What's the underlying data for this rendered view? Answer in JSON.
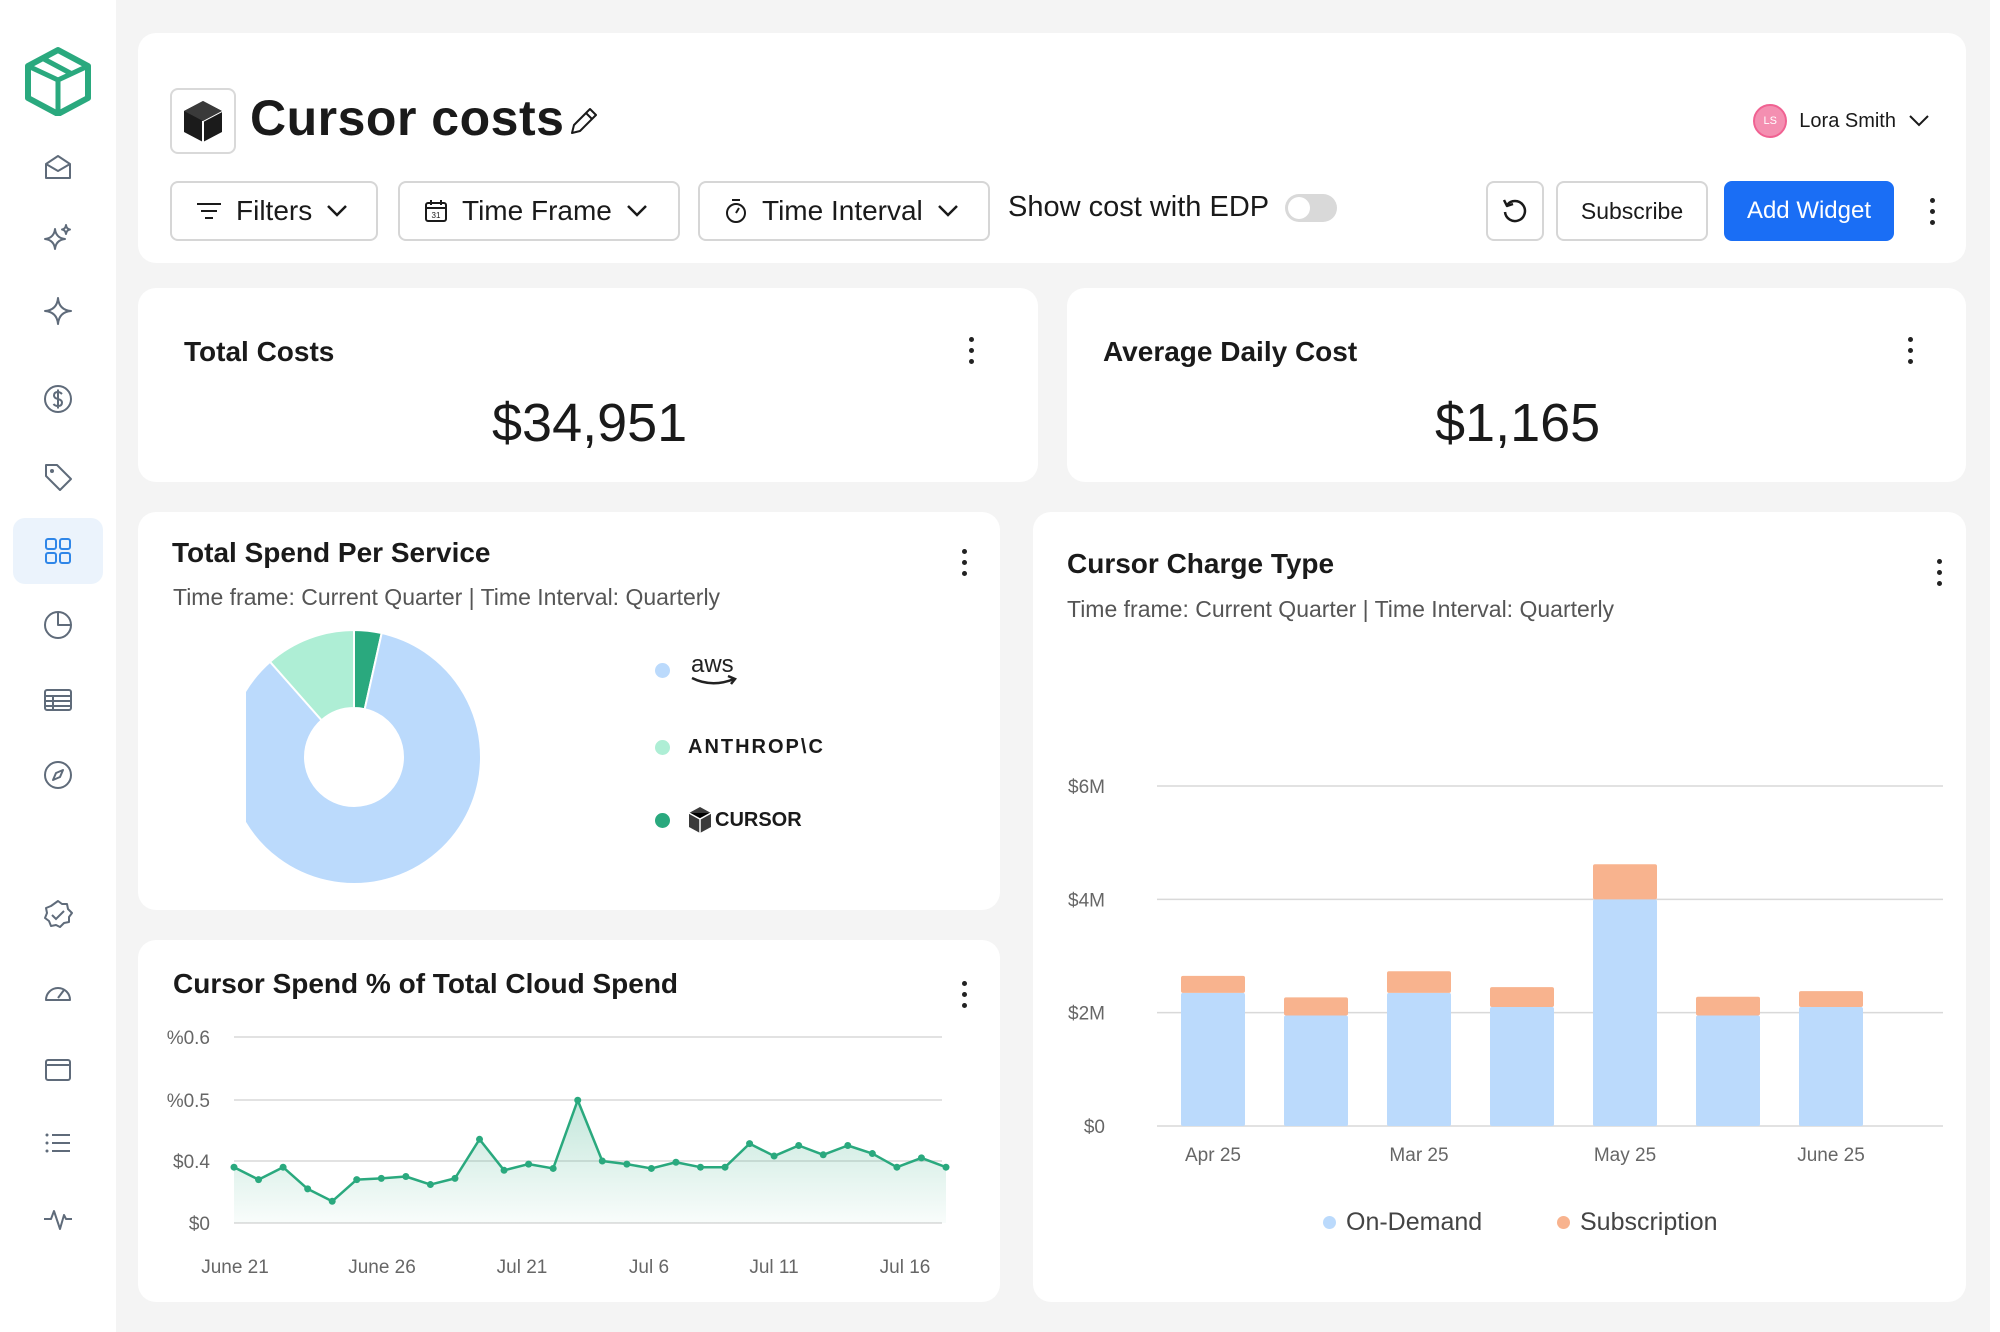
{
  "header": {
    "title": "Cursor costs",
    "user": {
      "name": "Lora Smith",
      "initials": "LS"
    },
    "filters_label": "Filters",
    "time_frame_label": "Time Frame",
    "time_interval_label": "Time Interval",
    "edp_label": "Show cost with EDP",
    "subscribe_label": "Subscribe",
    "add_widget_label": "Add Widget"
  },
  "kpis": {
    "total_costs": {
      "title": "Total Costs",
      "value": "$34,951"
    },
    "avg_daily": {
      "title": "Average Daily Cost",
      "value": "$1,165"
    }
  },
  "service_card": {
    "title": "Total Spend Per Service",
    "subtitle": "Time frame: Current Quarter | Time Interval: Quarterly",
    "legend": [
      {
        "label": "aws",
        "color": "#bbdafc"
      },
      {
        "label": "ANTHROP\\C",
        "color": "#aeeed5"
      },
      {
        "label": "CURSOR",
        "color": "#2aa97e"
      }
    ]
  },
  "charge_card": {
    "title": "Cursor Charge Type",
    "subtitle": "Time frame: Current Quarter | Time Interval: Quarterly",
    "legend": [
      {
        "label": "On-Demand",
        "color": "#bbdafc"
      },
      {
        "label": "Subscription",
        "color": "#f8b38e"
      }
    ]
  },
  "spend_pct_card": {
    "title": "Cursor Spend % of Total Cloud Spend"
  },
  "chart_data": [
    {
      "type": "pie",
      "categories": [
        "aws",
        "ANTHROP\\C",
        "CURSOR"
      ],
      "values": [
        85,
        11.5,
        3.5
      ],
      "colors": [
        "#bbdafc",
        "#aeeed5",
        "#2aa97e"
      ],
      "title": "Total Spend Per Service"
    },
    {
      "type": "bar",
      "stacked": true,
      "title": "Cursor Charge Type",
      "categories": [
        "Apr 25",
        "",
        "Mar 25",
        "",
        "May 25",
        "",
        "June 25"
      ],
      "yticks": [
        "$0",
        "$2M",
        "$4M",
        "$6M"
      ],
      "ylim": [
        0,
        6
      ],
      "series": [
        {
          "name": "On-Demand",
          "color": "#bbdafc",
          "values": [
            2.35,
            1.95,
            2.35,
            2.1,
            4.0,
            1.95,
            2.1
          ]
        },
        {
          "name": "Subscription",
          "color": "#f8b38e",
          "values": [
            0.3,
            0.32,
            0.38,
            0.35,
            0.62,
            0.33,
            0.28
          ]
        }
      ]
    },
    {
      "type": "area",
      "title": "Cursor Spend % of Total Cloud Spend",
      "xticks": [
        "June 21",
        "June 26",
        "Jul 21",
        "Jul 6",
        "Jul 11",
        "Jul 16"
      ],
      "yticks": [
        "$0",
        "$0.4",
        "%0.5",
        "%0.6"
      ],
      "color": "#2aa97e",
      "values": [
        0.39,
        0.37,
        0.39,
        0.355,
        0.335,
        0.37,
        0.372,
        0.375,
        0.362,
        0.372,
        0.435,
        0.385,
        0.395,
        0.388,
        0.498,
        0.4,
        0.395,
        0.388,
        0.398,
        0.39,
        0.39,
        0.428,
        0.408,
        0.425,
        0.41,
        0.425,
        0.412,
        0.39,
        0.405,
        0.39
      ]
    }
  ]
}
